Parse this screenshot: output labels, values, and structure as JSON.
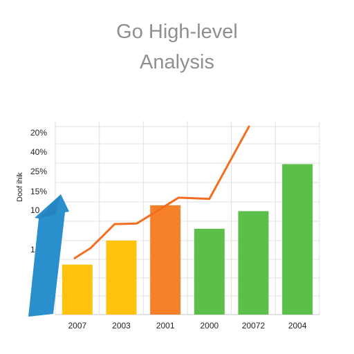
{
  "title_line1": "Go High-level",
  "title_line2": "Analysis",
  "chart_data": {
    "type": "bar",
    "categories": [
      "2007",
      "2003",
      "2001",
      "2000",
      "20072",
      "2004"
    ],
    "values": [
      2.5,
      6.6,
      12.6,
      8.6,
      11.6,
      19.6
    ],
    "ylim": [
      -6,
      26
    ],
    "y_tick_labels": [
      "20%",
      "40%",
      "25%",
      "15%",
      "10",
      "1"
    ],
    "ylabel": "Doof ihik",
    "bar_colors": [
      "#ffc20e",
      "#ffc20e",
      "#f7802b",
      "#5cbf4a",
      "#5cbf4a",
      "#5cbf4a"
    ],
    "line": {
      "color": "#f36d21",
      "x": [
        -0.06,
        0.3,
        0.85,
        1.35,
        2.3,
        3.0,
        3.9
      ],
      "y": [
        3.6,
        5.3,
        9.4,
        9.5,
        13.9,
        13.7,
        26.0
      ]
    },
    "arrow": {
      "color": "#2a8fcd",
      "direction": "up-right"
    },
    "grid": true,
    "legend": "none"
  }
}
